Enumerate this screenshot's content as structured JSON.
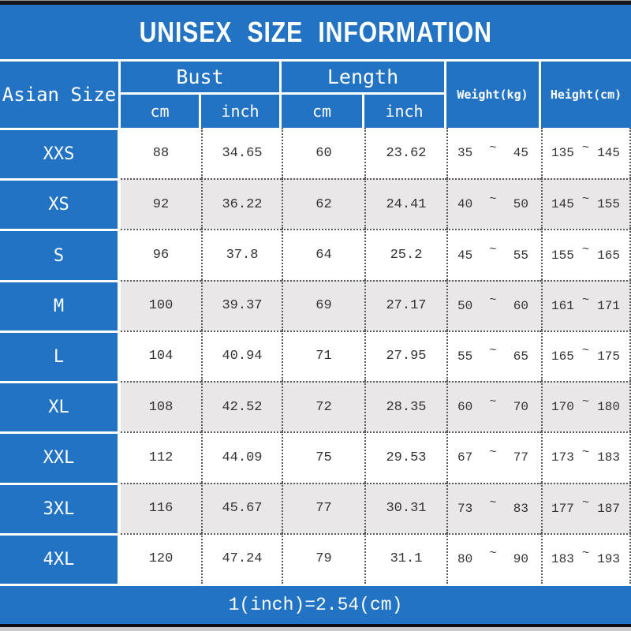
{
  "title": "UNISEX SIZE INFORMATION",
  "footer_note": "1(inch)=2.54(cm)",
  "colors": {
    "background_blue": "#2273c4",
    "alt_row_gray": "#e9e7e8",
    "data_text": "#333333",
    "header_text": "#ffffff",
    "top_bar": "#151515",
    "bottom_bar": "#0d0d18"
  },
  "header": {
    "asian_size": "Asian Size",
    "bust": "Bust",
    "length": "Length",
    "cm": "cm",
    "inch": "inch",
    "weight": "Weight(kg)",
    "height": "Height(cm)",
    "tilde": "~"
  },
  "rows": [
    {
      "size": "XXS",
      "bust_cm": "88",
      "bust_inch": "34.65",
      "length_cm": "60",
      "length_inch": "23.62",
      "weight_min": "35",
      "weight_max": "45",
      "height_min": "135",
      "height_max": "145"
    },
    {
      "size": "XS",
      "bust_cm": "92",
      "bust_inch": "36.22",
      "length_cm": "62",
      "length_inch": "24.41",
      "weight_min": "40",
      "weight_max": "50",
      "height_min": "145",
      "height_max": "155"
    },
    {
      "size": "S",
      "bust_cm": "96",
      "bust_inch": "37.8",
      "length_cm": "64",
      "length_inch": "25.2",
      "weight_min": "45",
      "weight_max": "55",
      "height_min": "155",
      "height_max": "165"
    },
    {
      "size": "M",
      "bust_cm": "100",
      "bust_inch": "39.37",
      "length_cm": "69",
      "length_inch": "27.17",
      "weight_min": "50",
      "weight_max": "60",
      "height_min": "161",
      "height_max": "171"
    },
    {
      "size": "L",
      "bust_cm": "104",
      "bust_inch": "40.94",
      "length_cm": "71",
      "length_inch": "27.95",
      "weight_min": "55",
      "weight_max": "65",
      "height_min": "165",
      "height_max": "175"
    },
    {
      "size": "XL",
      "bust_cm": "108",
      "bust_inch": "42.52",
      "length_cm": "72",
      "length_inch": "28.35",
      "weight_min": "60",
      "weight_max": "70",
      "height_min": "170",
      "height_max": "180"
    },
    {
      "size": "XXL",
      "bust_cm": "112",
      "bust_inch": "44.09",
      "length_cm": "75",
      "length_inch": "29.53",
      "weight_min": "67",
      "weight_max": "77",
      "height_min": "173",
      "height_max": "183"
    },
    {
      "size": "3XL",
      "bust_cm": "116",
      "bust_inch": "45.67",
      "length_cm": "77",
      "length_inch": "30.31",
      "weight_min": "73",
      "weight_max": "83",
      "height_min": "177",
      "height_max": "187"
    },
    {
      "size": "4XL",
      "bust_cm": "120",
      "bust_inch": "47.24",
      "length_cm": "79",
      "length_inch": "31.1",
      "weight_min": "80",
      "weight_max": "90",
      "height_min": "183",
      "height_max": "193"
    }
  ],
  "chart_data": {
    "type": "table",
    "title": "UNISEX SIZE INFORMATION",
    "columns": [
      "Asian Size",
      "Bust cm",
      "Bust inch",
      "Length cm",
      "Length inch",
      "Weight(kg)",
      "Height(cm)"
    ],
    "rows": [
      [
        "XXS",
        88,
        34.65,
        60,
        23.62,
        "35~45",
        "135~145"
      ],
      [
        "XS",
        92,
        36.22,
        62,
        24.41,
        "40~50",
        "145~155"
      ],
      [
        "S",
        96,
        37.8,
        64,
        25.2,
        "45~55",
        "155~165"
      ],
      [
        "M",
        100,
        39.37,
        69,
        27.17,
        "50~60",
        "161~171"
      ],
      [
        "L",
        104,
        40.94,
        71,
        27.95,
        "55~65",
        "165~175"
      ],
      [
        "XL",
        108,
        42.52,
        72,
        28.35,
        "60~70",
        "170~180"
      ],
      [
        "XXL",
        112,
        44.09,
        75,
        29.53,
        "67~77",
        "173~183"
      ],
      [
        "3XL",
        116,
        45.67,
        77,
        30.31,
        "73~83",
        "177~187"
      ],
      [
        "4XL",
        120,
        47.24,
        79,
        31.1,
        "80~90",
        "183~193"
      ]
    ],
    "note": "1(inch)=2.54(cm)",
    "layout": "alternating white/gray rows, blue header and size column, dotted cell dividers"
  }
}
